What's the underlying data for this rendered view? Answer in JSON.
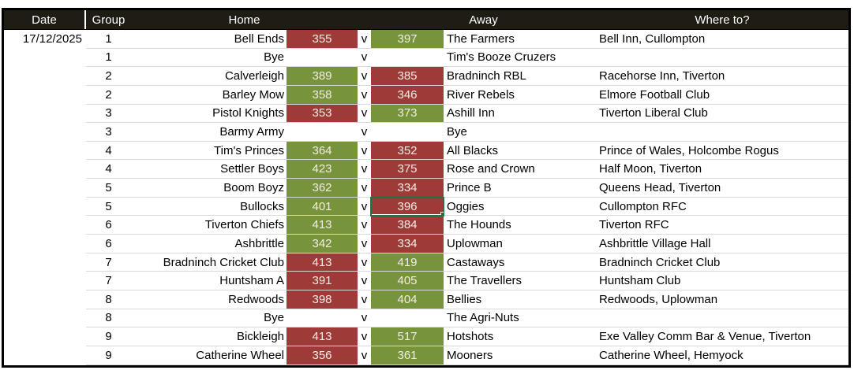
{
  "header": {
    "date": "Date",
    "group": "Group",
    "home": "Home",
    "versus_spacer": "",
    "away": "Away",
    "where": "Where to?"
  },
  "date": "17/12/2025",
  "versus_label": "v",
  "colors": {
    "win": "#77933C",
    "loss": "#9E3B39",
    "header_bg": "#1F1C13",
    "selection": "#217346",
    "gridline": "#D9D9D9",
    "score_text": "#F2EDE3"
  },
  "selected_cell": {
    "row_index": 9,
    "column": "away_score",
    "value": "396"
  },
  "rows": [
    {
      "group": "1",
      "home": "Bell Ends",
      "home_score": "355",
      "home_result": "loss",
      "away_score": "397",
      "away_result": "win",
      "away": "The Farmers",
      "venue": "Bell Inn, Cullompton"
    },
    {
      "group": "1",
      "home": "Bye",
      "home_score": null,
      "home_result": null,
      "away_score": null,
      "away_result": null,
      "away": "Tim's Booze Cruzers",
      "venue": ""
    },
    {
      "group": "2",
      "home": "Calverleigh",
      "home_score": "389",
      "home_result": "win",
      "away_score": "385",
      "away_result": "loss",
      "away": "Bradninch RBL",
      "venue": "Racehorse Inn, Tiverton"
    },
    {
      "group": "2",
      "home": "Barley Mow",
      "home_score": "358",
      "home_result": "win",
      "away_score": "346",
      "away_result": "loss",
      "away": "River Rebels",
      "venue": "Elmore Football Club"
    },
    {
      "group": "3",
      "home": "Pistol Knights",
      "home_score": "353",
      "home_result": "loss",
      "away_score": "373",
      "away_result": "win",
      "away": "Ashill Inn",
      "venue": "Tiverton Liberal Club"
    },
    {
      "group": "3",
      "home": "Barmy Army",
      "home_score": null,
      "home_result": null,
      "away_score": null,
      "away_result": null,
      "away": "Bye",
      "venue": ""
    },
    {
      "group": "4",
      "home": "Tim's Princes",
      "home_score": "364",
      "home_result": "win",
      "away_score": "352",
      "away_result": "loss",
      "away": "All Blacks",
      "venue": "Prince of Wales, Holcombe Rogus"
    },
    {
      "group": "4",
      "home": "Settler Boys",
      "home_score": "423",
      "home_result": "win",
      "away_score": "375",
      "away_result": "loss",
      "away": "Rose and Crown",
      "venue": "Half Moon, Tiverton"
    },
    {
      "group": "5",
      "home": "Boom Boyz",
      "home_score": "362",
      "home_result": "win",
      "away_score": "334",
      "away_result": "loss",
      "away": "Prince B",
      "venue": "Queens Head, Tiverton"
    },
    {
      "group": "5",
      "home": "Bullocks",
      "home_score": "401",
      "home_result": "win",
      "away_score": "396",
      "away_result": "loss",
      "away": "Oggies",
      "venue": "Cullompton RFC",
      "selected": "away_score"
    },
    {
      "group": "6",
      "home": "Tiverton Chiefs",
      "home_score": "413",
      "home_result": "win",
      "away_score": "384",
      "away_result": "loss",
      "away": "The Hounds",
      "venue": "Tiverton RFC"
    },
    {
      "group": "6",
      "home": "Ashbrittle",
      "home_score": "342",
      "home_result": "win",
      "away_score": "334",
      "away_result": "loss",
      "away": "Uplowman",
      "venue": "Ashbrittle Village Hall"
    },
    {
      "group": "7",
      "home": "Bradninch Cricket Club",
      "home_score": "413",
      "home_result": "loss",
      "away_score": "419",
      "away_result": "win",
      "away": "Castaways",
      "venue": "Bradninch Cricket Club"
    },
    {
      "group": "7",
      "home": "Huntsham A",
      "home_score": "391",
      "home_result": "loss",
      "away_score": "405",
      "away_result": "win",
      "away": "The Travellers",
      "venue": "Huntsham Club"
    },
    {
      "group": "8",
      "home": "Redwoods",
      "home_score": "398",
      "home_result": "loss",
      "away_score": "404",
      "away_result": "win",
      "away": "Bellies",
      "venue": "Redwoods, Uplowman"
    },
    {
      "group": "8",
      "home": "Bye",
      "home_score": null,
      "home_result": null,
      "away_score": null,
      "away_result": null,
      "away": "The Agri-Nuts",
      "venue": ""
    },
    {
      "group": "9",
      "home": "Bickleigh",
      "home_score": "413",
      "home_result": "loss",
      "away_score": "517",
      "away_result": "win",
      "away": "Hotshots",
      "venue": "Exe Valley Comm Bar & Venue, Tiverton"
    },
    {
      "group": "9",
      "home": "Catherine Wheel",
      "home_score": "356",
      "home_result": "loss",
      "away_score": "361",
      "away_result": "win",
      "away": "Mooners",
      "venue": "Catherine Wheel, Hemyock"
    }
  ]
}
